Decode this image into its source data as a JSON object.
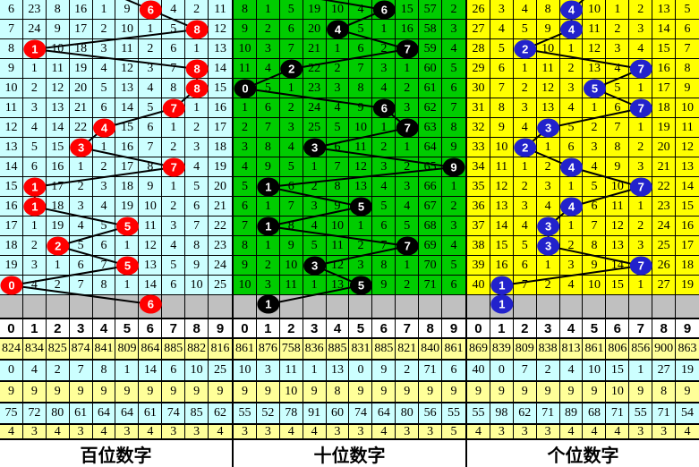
{
  "columns": [
    "0",
    "1",
    "2",
    "3",
    "4",
    "5",
    "6",
    "7",
    "8",
    "9"
  ],
  "colors": {
    "hundreds_bg": "#CCFFFF",
    "tens_bg": "#00CC00",
    "units_bg": "#FFFF00",
    "pending_bg": "#C0C0C0",
    "stats_yellow": "#FFFF99",
    "stats_cyan": "#CCFFFF",
    "ball_red": "#FF0000",
    "ball_black": "#000000",
    "ball_blue": "#2222CC",
    "line": "#000000"
  },
  "panels": [
    {
      "key": "hundreds",
      "title": "百位数字",
      "bg": "#CCFFFF",
      "ball": "#FF0000",
      "stub_col": 4,
      "rows": [
        [
          "6",
          "23",
          "8",
          "16",
          "1",
          "9",
          "",
          "4",
          "2",
          "11"
        ],
        [
          "7",
          "24",
          "9",
          "17",
          "2",
          "10",
          "1",
          "5",
          "",
          "12"
        ],
        [
          "8",
          "",
          "10",
          "18",
          "3",
          "11",
          "2",
          "6",
          "1",
          "13"
        ],
        [
          "9",
          "1",
          "11",
          "19",
          "4",
          "12",
          "3",
          "7",
          "",
          "14"
        ],
        [
          "10",
          "2",
          "12",
          "20",
          "5",
          "13",
          "4",
          "8",
          "",
          "15"
        ],
        [
          "11",
          "3",
          "13",
          "21",
          "6",
          "14",
          "5",
          "",
          "1",
          "16"
        ],
        [
          "12",
          "4",
          "14",
          "22",
          "",
          "15",
          "6",
          "1",
          "2",
          "17"
        ],
        [
          "13",
          "5",
          "15",
          "",
          "1",
          "16",
          "7",
          "2",
          "3",
          "18"
        ],
        [
          "14",
          "6",
          "16",
          "1",
          "2",
          "17",
          "8",
          "",
          "4",
          "19"
        ],
        [
          "15",
          "",
          "17",
          "2",
          "3",
          "18",
          "9",
          "1",
          "5",
          "20"
        ],
        [
          "16",
          "",
          "18",
          "3",
          "4",
          "19",
          "10",
          "2",
          "6",
          "21"
        ],
        [
          "17",
          "1",
          "19",
          "4",
          "5",
          "",
          "11",
          "3",
          "7",
          "22"
        ],
        [
          "18",
          "2",
          "",
          "5",
          "6",
          "1",
          "12",
          "4",
          "8",
          "23"
        ],
        [
          "19",
          "3",
          "1",
          "6",
          "7",
          "",
          "13",
          "5",
          "9",
          "24"
        ],
        [
          "",
          "4",
          "2",
          "7",
          "8",
          "1",
          "14",
          "6",
          "10",
          "25"
        ]
      ],
      "balls": [
        {
          "row": 1,
          "col": 6,
          "label": "6"
        },
        {
          "row": 2,
          "col": 8,
          "label": "8"
        },
        {
          "row": 3,
          "col": 1,
          "label": "1"
        },
        {
          "row": 4,
          "col": 8,
          "label": "8"
        },
        {
          "row": 5,
          "col": 8,
          "label": "8"
        },
        {
          "row": 6,
          "col": 7,
          "label": "7"
        },
        {
          "row": 7,
          "col": 4,
          "label": "4"
        },
        {
          "row": 8,
          "col": 3,
          "label": "3"
        },
        {
          "row": 9,
          "col": 7,
          "label": "7"
        },
        {
          "row": 10,
          "col": 1,
          "label": "1"
        },
        {
          "row": 11,
          "col": 1,
          "label": "1"
        },
        {
          "row": 12,
          "col": 5,
          "label": "5"
        },
        {
          "row": 13,
          "col": 2,
          "label": "2"
        },
        {
          "row": 14,
          "col": 5,
          "label": "5"
        },
        {
          "row": 15,
          "col": 0,
          "label": "0"
        },
        {
          "row": 16,
          "col": 6,
          "label": "6"
        }
      ],
      "stats": [
        [
          "824",
          "834",
          "825",
          "874",
          "841",
          "809",
          "864",
          "885",
          "882",
          "816"
        ],
        [
          "0",
          "4",
          "2",
          "7",
          "8",
          "1",
          "14",
          "6",
          "10",
          "25"
        ],
        [
          "9",
          "9",
          "9",
          "9",
          "9",
          "9",
          "9",
          "9",
          "9",
          "9"
        ],
        [
          "75",
          "72",
          "80",
          "61",
          "64",
          "64",
          "61",
          "74",
          "85",
          "62"
        ],
        [
          "4",
          "3",
          "4",
          "3",
          "4",
          "3",
          "4",
          "3",
          "3",
          "4"
        ]
      ]
    },
    {
      "key": "tens",
      "title": "十位数字",
      "bg": "#00CC00",
      "ball": "#000000",
      "stub_col": 1,
      "rows": [
        [
          "8",
          "1",
          "5",
          "19",
          "10",
          "4",
          "",
          "15",
          "57",
          "2"
        ],
        [
          "9",
          "2",
          "6",
          "20",
          "",
          "5",
          "1",
          "16",
          "58",
          "3"
        ],
        [
          "10",
          "3",
          "7",
          "21",
          "1",
          "6",
          "2",
          "",
          "59",
          "4"
        ],
        [
          "11",
          "4",
          "",
          "22",
          "2",
          "7",
          "3",
          "1",
          "60",
          "5"
        ],
        [
          "",
          "5",
          "1",
          "23",
          "3",
          "8",
          "4",
          "2",
          "61",
          "6"
        ],
        [
          "1",
          "6",
          "2",
          "24",
          "4",
          "9",
          "",
          "3",
          "62",
          "7"
        ],
        [
          "2",
          "7",
          "3",
          "25",
          "5",
          "10",
          "1",
          "",
          "63",
          "8"
        ],
        [
          "3",
          "8",
          "4",
          "",
          "6",
          "11",
          "2",
          "1",
          "64",
          "9"
        ],
        [
          "4",
          "9",
          "5",
          "1",
          "7",
          "12",
          "3",
          "2",
          "65",
          ""
        ],
        [
          "5",
          "",
          "6",
          "2",
          "8",
          "13",
          "4",
          "3",
          "66",
          "1"
        ],
        [
          "6",
          "1",
          "7",
          "3",
          "9",
          "",
          "5",
          "4",
          "67",
          "2"
        ],
        [
          "7",
          "",
          "8",
          "4",
          "10",
          "1",
          "6",
          "5",
          "68",
          "3"
        ],
        [
          "8",
          "1",
          "9",
          "5",
          "11",
          "2",
          "7",
          "",
          "69",
          "4"
        ],
        [
          "9",
          "2",
          "10",
          "",
          "12",
          "3",
          "8",
          "1",
          "70",
          "5"
        ],
        [
          "10",
          "3",
          "11",
          "1",
          "13",
          "",
          "9",
          "2",
          "71",
          "6"
        ]
      ],
      "balls": [
        {
          "row": 1,
          "col": 6,
          "label": "6"
        },
        {
          "row": 2,
          "col": 4,
          "label": "4"
        },
        {
          "row": 3,
          "col": 7,
          "label": "7"
        },
        {
          "row": 4,
          "col": 2,
          "label": "2"
        },
        {
          "row": 5,
          "col": 0,
          "label": "0"
        },
        {
          "row": 6,
          "col": 6,
          "label": "6"
        },
        {
          "row": 7,
          "col": 7,
          "label": "7"
        },
        {
          "row": 8,
          "col": 3,
          "label": "3"
        },
        {
          "row": 9,
          "col": 9,
          "label": "9"
        },
        {
          "row": 10,
          "col": 1,
          "label": "1"
        },
        {
          "row": 11,
          "col": 5,
          "label": "5"
        },
        {
          "row": 12,
          "col": 1,
          "label": "1"
        },
        {
          "row": 13,
          "col": 7,
          "label": "7"
        },
        {
          "row": 14,
          "col": 3,
          "label": "3"
        },
        {
          "row": 15,
          "col": 5,
          "label": "5"
        },
        {
          "row": 16,
          "col": 1,
          "label": "1"
        }
      ],
      "stats": [
        [
          "861",
          "876",
          "758",
          "836",
          "885",
          "831",
          "885",
          "821",
          "840",
          "861"
        ],
        [
          "10",
          "3",
          "11",
          "1",
          "13",
          "0",
          "9",
          "2",
          "71",
          "6"
        ],
        [
          "9",
          "9",
          "10",
          "9",
          "8",
          "9",
          "9",
          "9",
          "9",
          "9"
        ],
        [
          "55",
          "52",
          "78",
          "91",
          "60",
          "74",
          "64",
          "80",
          "56",
          "55"
        ],
        [
          "3",
          "3",
          "4",
          "4",
          "3",
          "3",
          "4",
          "3",
          "3",
          "5"
        ]
      ]
    },
    {
      "key": "units",
      "title": "个位数字",
      "bg": "#FFFF00",
      "ball": "#2222CC",
      "stub_col": 5,
      "rows": [
        [
          "26",
          "3",
          "4",
          "8",
          "",
          "10",
          "1",
          "2",
          "13",
          "5"
        ],
        [
          "27",
          "4",
          "5",
          "9",
          "",
          "11",
          "2",
          "3",
          "14",
          "6"
        ],
        [
          "28",
          "5",
          "",
          "10",
          "1",
          "12",
          "3",
          "4",
          "15",
          "7"
        ],
        [
          "29",
          "6",
          "1",
          "11",
          "2",
          "13",
          "4",
          "",
          "16",
          "8"
        ],
        [
          "30",
          "7",
          "2",
          "12",
          "3",
          "",
          "5",
          "1",
          "17",
          "9"
        ],
        [
          "31",
          "8",
          "3",
          "13",
          "4",
          "1",
          "6",
          "",
          "18",
          "10"
        ],
        [
          "32",
          "9",
          "4",
          "",
          "5",
          "2",
          "7",
          "1",
          "19",
          "11"
        ],
        [
          "33",
          "10",
          "",
          "1",
          "6",
          "3",
          "8",
          "2",
          "20",
          "12"
        ],
        [
          "34",
          "11",
          "1",
          "2",
          "",
          "4",
          "9",
          "3",
          "21",
          "13"
        ],
        [
          "35",
          "12",
          "2",
          "3",
          "1",
          "5",
          "10",
          "",
          "22",
          "14"
        ],
        [
          "36",
          "13",
          "3",
          "4",
          "",
          "6",
          "11",
          "1",
          "23",
          "15"
        ],
        [
          "37",
          "14",
          "4",
          "",
          "1",
          "7",
          "12",
          "2",
          "24",
          "16"
        ],
        [
          "38",
          "15",
          "5",
          "",
          "2",
          "8",
          "13",
          "3",
          "25",
          "17"
        ],
        [
          "39",
          "16",
          "6",
          "1",
          "3",
          "9",
          "14",
          "",
          "26",
          "18"
        ],
        [
          "40",
          "",
          "7",
          "2",
          "4",
          "10",
          "15",
          "1",
          "27",
          "19"
        ]
      ],
      "balls": [
        {
          "row": 1,
          "col": 4,
          "label": "4"
        },
        {
          "row": 2,
          "col": 4,
          "label": "4"
        },
        {
          "row": 3,
          "col": 2,
          "label": "2"
        },
        {
          "row": 4,
          "col": 7,
          "label": "7"
        },
        {
          "row": 5,
          "col": 5,
          "label": "5"
        },
        {
          "row": 6,
          "col": 7,
          "label": "7"
        },
        {
          "row": 7,
          "col": 3,
          "label": "3"
        },
        {
          "row": 8,
          "col": 2,
          "label": "2"
        },
        {
          "row": 9,
          "col": 4,
          "label": "4"
        },
        {
          "row": 10,
          "col": 7,
          "label": "7"
        },
        {
          "row": 11,
          "col": 4,
          "label": "4"
        },
        {
          "row": 12,
          "col": 3,
          "label": "3"
        },
        {
          "row": 13,
          "col": 3,
          "label": "3"
        },
        {
          "row": 14,
          "col": 7,
          "label": "7"
        },
        {
          "row": 15,
          "col": 1,
          "label": "1"
        },
        {
          "row": 16,
          "col": 1,
          "label": "1"
        }
      ],
      "stats": [
        [
          "869",
          "839",
          "809",
          "838",
          "813",
          "861",
          "806",
          "856",
          "900",
          "863"
        ],
        [
          "40",
          "0",
          "7",
          "2",
          "4",
          "10",
          "15",
          "1",
          "27",
          "19"
        ],
        [
          "9",
          "9",
          "9",
          "9",
          "9",
          "9",
          "10",
          "9",
          "8",
          "9"
        ],
        [
          "55",
          "98",
          "62",
          "71",
          "89",
          "68",
          "71",
          "55",
          "71",
          "54"
        ],
        [
          "4",
          "3",
          "3",
          "3",
          "4",
          "4",
          "4",
          "3",
          "3",
          "4"
        ]
      ]
    }
  ],
  "chart_data": {
    "type": "table",
    "columns": [
      "0",
      "1",
      "2",
      "3",
      "4",
      "5",
      "6",
      "7",
      "8",
      "9"
    ],
    "panels": [
      {
        "name": "百位数字",
        "drawn_sequence": [
          6,
          8,
          1,
          8,
          8,
          7,
          4,
          3,
          7,
          1,
          1,
          5,
          2,
          5,
          0,
          6
        ]
      },
      {
        "name": "十位数字",
        "drawn_sequence": [
          6,
          4,
          7,
          2,
          0,
          6,
          7,
          3,
          9,
          1,
          5,
          1,
          7,
          3,
          5,
          1
        ]
      },
      {
        "name": "个位数字",
        "drawn_sequence": [
          4,
          4,
          2,
          7,
          5,
          7,
          3,
          2,
          4,
          7,
          4,
          3,
          3,
          7,
          1,
          1
        ]
      }
    ],
    "notes": "Each panel is a 15-row x 10-column miss-count grid; balls mark drawn digits connected by a trend line; gray row holds the latest marked digit; below are the 0-9 header and five statistics rows."
  }
}
